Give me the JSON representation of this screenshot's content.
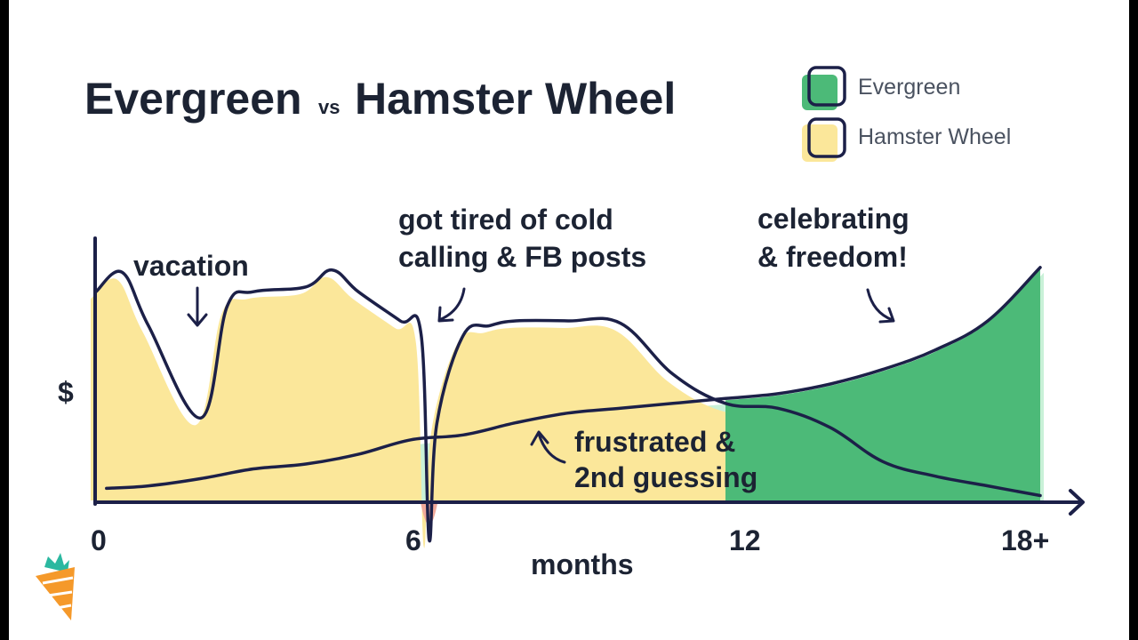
{
  "chart_data": {
    "type": "area",
    "title_part1": "Evergreen",
    "title_vs": "vs",
    "title_part2": "Hamster Wheel",
    "xlabel": "months",
    "ylabel": "$",
    "x_ticks": [
      "0",
      "6",
      "12",
      "18+"
    ],
    "xlim": [
      0,
      18
    ],
    "series": [
      {
        "name": "Evergreen",
        "fill": "#4cba78",
        "x": [
          0.2,
          1,
          2,
          3,
          4,
          5,
          6,
          7,
          8,
          9,
          10,
          11,
          12,
          13,
          14,
          15,
          16,
          17,
          18
        ],
        "values": [
          0.05,
          0.06,
          0.09,
          0.13,
          0.15,
          0.19,
          0.25,
          0.27,
          0.32,
          0.36,
          0.38,
          0.4,
          0.42,
          0.44,
          0.48,
          0.54,
          0.62,
          0.74,
          0.96
        ]
      },
      {
        "name": "Hamster Wheel",
        "fill": "#fbe79a",
        "x": [
          0,
          0.5,
          1,
          2,
          2.5,
          3,
          4,
          4.5,
          5,
          5.8,
          6.2,
          6.35,
          6.5,
          7,
          7.5,
          8,
          9,
          10,
          11,
          12,
          13,
          14,
          15,
          16,
          17,
          18
        ],
        "values": [
          0.86,
          0.94,
          0.72,
          0.34,
          0.8,
          0.86,
          0.88,
          0.95,
          0.86,
          0.74,
          0.68,
          -0.16,
          0.32,
          0.68,
          0.72,
          0.74,
          0.74,
          0.73,
          0.52,
          0.4,
          0.38,
          0.3,
          0.16,
          0.1,
          0.06,
          0.02
        ]
      }
    ],
    "legend": [
      "Evergreen",
      "Hamster Wheel"
    ],
    "legend_position": "top-right",
    "annotations": [
      {
        "lines": [
          "vacation"
        ]
      },
      {
        "lines": [
          "got tired of cold",
          "calling & FB posts"
        ]
      },
      {
        "lines": [
          "celebrating",
          "& freedom!"
        ]
      },
      {
        "lines": [
          "frustrated &",
          "2nd guessing"
        ]
      }
    ],
    "colors": {
      "evergreen": "#4cba78",
      "evergreen_light": "#c9f1d8",
      "hamster": "#fbe79a",
      "dip": "#f0a99a",
      "line": "#1c2048",
      "brand_orange": "#f5992a",
      "brand_green": "#2bb8a0"
    }
  }
}
